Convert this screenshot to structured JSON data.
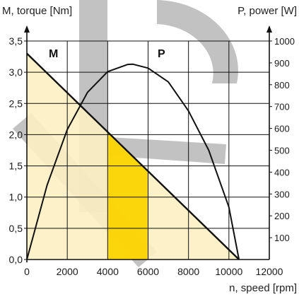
{
  "chart_data": {
    "type": "line",
    "title": "",
    "xlabel": "n, speed [rpm]",
    "ylabel_left": "M, torque [Nm]",
    "ylabel_right": "P, power [W]",
    "xlim": [
      0,
      12000
    ],
    "ylim_left": [
      0,
      3.5
    ],
    "ylim_right": [
      0,
      1000
    ],
    "grid": true,
    "x_ticks": [
      "0",
      "2000",
      "4000",
      "6000",
      "8000",
      "10000",
      "12000"
    ],
    "y_left_ticks": [
      "0,0",
      "0,5",
      "1,0",
      "1,5",
      "2,0",
      "2,5",
      "3,0",
      "3,5"
    ],
    "y_right_ticks": [
      "100",
      "200",
      "300",
      "400",
      "500",
      "600",
      "700",
      "800",
      "900",
      "1000"
    ],
    "series": [
      {
        "name": "M",
        "axis": "left",
        "x": [
          0,
          10500
        ],
        "y": [
          3.3,
          0
        ]
      },
      {
        "name": "P",
        "axis": "right",
        "x": [
          0,
          1000,
          2000,
          3000,
          4000,
          5000,
          5250,
          6000,
          7000,
          8000,
          9000,
          10000,
          10500
        ],
        "y": [
          0,
          340,
          595,
          765,
          860,
          893,
          894,
          876,
          813,
          680,
          500,
          240,
          0
        ]
      }
    ],
    "shaded_regions": [
      {
        "x_from": 0,
        "x_to": 10500,
        "under": "M",
        "color": "#fdefc4"
      },
      {
        "x_from": 4000,
        "x_to": 6000,
        "under": "M",
        "color": "#fbd400"
      }
    ],
    "colors": {
      "curves": "#111111",
      "grid": "#111111",
      "light_fill": "#fdefc4",
      "highlight_fill": "#fbd400",
      "watermark": "#a8a8a8"
    }
  }
}
